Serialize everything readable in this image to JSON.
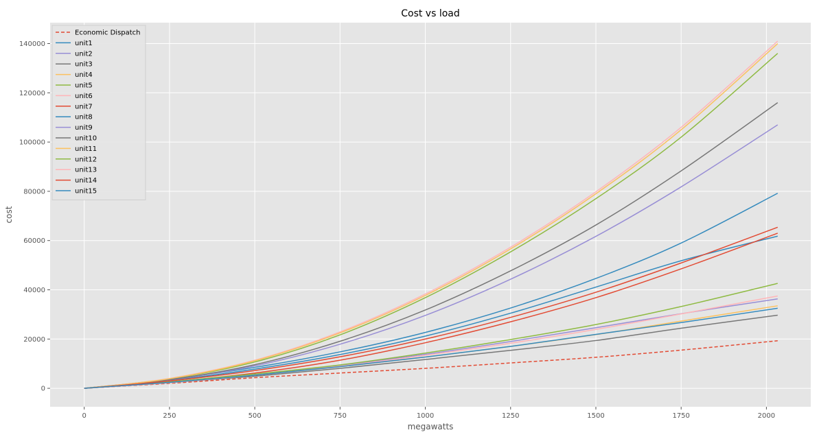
{
  "chart_data": {
    "type": "line",
    "title": "Cost vs load",
    "xlabel": "megawatts",
    "ylabel": "cost",
    "xlim": [
      -100,
      2130
    ],
    "ylim": [
      -7500,
      148500
    ],
    "xticks": [
      0,
      250,
      500,
      750,
      1000,
      1250,
      1500,
      1750,
      2000
    ],
    "yticks": [
      0,
      20000,
      40000,
      60000,
      80000,
      100000,
      120000,
      140000
    ],
    "grid": true,
    "legend_position": "top-left",
    "x": [
      0,
      250,
      500,
      750,
      1000,
      1250,
      1500,
      1750,
      2033
    ],
    "series": [
      {
        "name": "Economic Dispatch",
        "color": "#e24a33",
        "dash": true,
        "values": [
          0,
          2000,
          4300,
          6200,
          8100,
          10300,
          12600,
          15500,
          19300
        ]
      },
      {
        "name": "unit1",
        "color": "#348abd",
        "dash": false,
        "values": [
          0,
          3200,
          7800,
          13700,
          21200,
          30500,
          41100,
          51800,
          61800
        ]
      },
      {
        "name": "unit2",
        "color": "#988ed5",
        "dash": false,
        "values": [
          0,
          2300,
          5400,
          9300,
          13800,
          19000,
          24600,
          30300,
          36300
        ]
      },
      {
        "name": "unit3",
        "color": "#777777",
        "dash": false,
        "values": [
          0,
          2300,
          4900,
          8100,
          11700,
          15400,
          19400,
          24400,
          29700
        ]
      },
      {
        "name": "unit4",
        "color": "#fbc15e",
        "dash": false,
        "values": [
          0,
          2400,
          5300,
          8800,
          12700,
          17000,
          21800,
          27300,
          33500
        ]
      },
      {
        "name": "unit5",
        "color": "#8eba42",
        "dash": false,
        "values": [
          0,
          3800,
          10700,
          21700,
          36800,
          55400,
          77000,
          102000,
          136000
        ]
      },
      {
        "name": "unit6",
        "color": "#ffb5b8",
        "dash": false,
        "values": [
          0,
          4000,
          11400,
          22900,
          38300,
          57300,
          79800,
          106000,
          141000
        ]
      },
      {
        "name": "unit7",
        "color": "#e24a33",
        "dash": false,
        "values": [
          0,
          2600,
          6200,
          11400,
          18500,
          27000,
          36800,
          48500,
          63000
        ]
      },
      {
        "name": "unit8",
        "color": "#348abd",
        "dash": false,
        "values": [
          0,
          3600,
          8500,
          14800,
          22700,
          32600,
          44600,
          59000,
          79200
        ]
      },
      {
        "name": "unit9",
        "color": "#988ed5",
        "dash": false,
        "values": [
          0,
          3400,
          9100,
          17900,
          29600,
          44300,
          61700,
          81800,
          107000
        ]
      },
      {
        "name": "unit10",
        "color": "#777777",
        "dash": false,
        "values": [
          0,
          3500,
          9600,
          19100,
          31800,
          47700,
          66300,
          88300,
          116000
        ]
      },
      {
        "name": "unit11",
        "color": "#fbc15e",
        "dash": false,
        "values": [
          0,
          3900,
          11200,
          22500,
          37700,
          56600,
          79000,
          105000,
          140000
        ]
      },
      {
        "name": "unit12",
        "color": "#8eba42",
        "dash": false,
        "values": [
          0,
          2600,
          5800,
          9500,
          14300,
          19800,
          25900,
          33200,
          42600
        ]
      },
      {
        "name": "unit13",
        "color": "#ffb5b8",
        "dash": false,
        "values": [
          0,
          2300,
          5300,
          9000,
          13400,
          18300,
          23900,
          30200,
          37500
        ]
      },
      {
        "name": "unit14",
        "color": "#e24a33",
        "dash": false,
        "values": [
          0,
          3000,
          7200,
          12800,
          20000,
          28800,
          39000,
          50900,
          65400
        ]
      },
      {
        "name": "unit15",
        "color": "#348abd",
        "dash": false,
        "values": [
          0,
          2400,
          5300,
          8800,
          12700,
          17000,
          21900,
          26700,
          32500
        ]
      }
    ]
  }
}
